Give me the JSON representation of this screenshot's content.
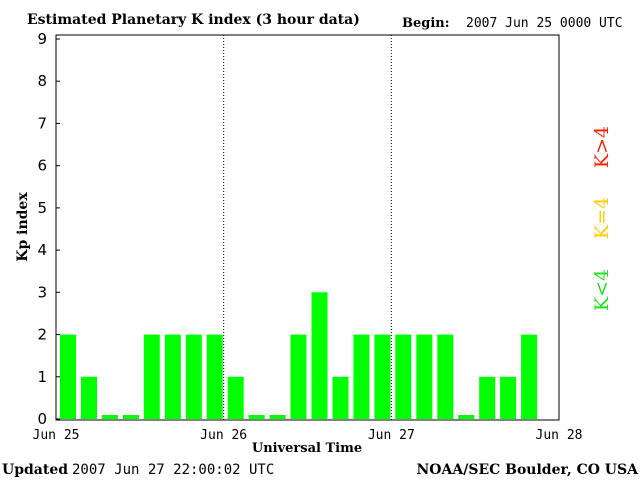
{
  "chart_data": {
    "type": "bar",
    "title": "Estimated Planetary K index (3 hour data)",
    "begin_label": "Begin:",
    "begin_value": "2007 Jun 25 0000 UTC",
    "ylabel": "Kp index",
    "xlabel": "Universal Time",
    "ylim": [
      0,
      9
    ],
    "yticks": [
      "0",
      "1",
      "2",
      "3",
      "4",
      "5",
      "6",
      "7",
      "8",
      "9"
    ],
    "xlim_days": [
      0,
      3
    ],
    "xticks": [
      {
        "label": "Jun 25",
        "day": 0
      },
      {
        "label": "Jun 26",
        "day": 1
      },
      {
        "label": "Jun 27",
        "day": 2
      },
      {
        "label": "Jun 28",
        "day": 3
      }
    ],
    "day_dividers": [
      1,
      2
    ],
    "interval_hours": 3,
    "values": [
      2,
      1,
      0,
      0,
      2,
      2,
      2,
      2,
      1,
      0,
      0,
      2,
      3,
      1,
      2,
      2,
      2,
      2,
      2,
      0,
      1,
      1,
      2
    ],
    "bar_color": "#00ff00",
    "legend": [
      {
        "text": "K<4",
        "color": "#22e022"
      },
      {
        "text": "K=4",
        "color": "#ffcc00"
      },
      {
        "text": "K>4",
        "color": "#ff2200"
      }
    ],
    "grid": false
  },
  "footer": {
    "updated_label": "Updated",
    "updated_value": "2007 Jun 27 22:00:02 UTC",
    "credit": "NOAA/SEC Boulder, CO USA"
  }
}
